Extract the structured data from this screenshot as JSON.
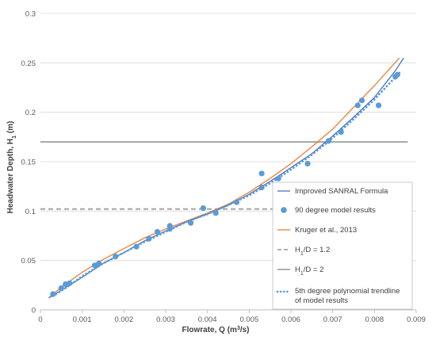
{
  "chart_data": {
    "type": "scatter",
    "xlabel_main": "Flowrate, Q (m",
    "xlabel_sup": "3",
    "xlabel_end": "/s)",
    "ylabel_main": "Headwater Depth, H",
    "ylabel_sub": "1",
    "ylabel_end": " (m)",
    "xlim": [
      0,
      0.009
    ],
    "ylim": [
      0,
      0.3
    ],
    "x_ticks": [
      "0",
      "0.001",
      "0.002",
      "0.003",
      "0.004",
      "0.005",
      "0.006",
      "0.007",
      "0.008",
      "0.009"
    ],
    "y_ticks": [
      "0",
      "0.05",
      "0.1",
      "0.15",
      "0.2",
      "0.25",
      "0.3"
    ],
    "x_tick_values": [
      0,
      0.001,
      0.002,
      0.003,
      0.004,
      0.005,
      0.006,
      0.007,
      0.008,
      0.009
    ],
    "y_tick_values": [
      0,
      0.05,
      0.1,
      0.15,
      0.2,
      0.25,
      0.3
    ],
    "grid": "horizontal",
    "legend_position": "bottom-right inside",
    "series": [
      {
        "name": "Improved SANRAL Formula",
        "kind": "line",
        "color": "#4472C4",
        "x": [
          0.0002,
          0.0005,
          0.001,
          0.0015,
          0.002,
          0.0025,
          0.003,
          0.0035,
          0.004,
          0.0045,
          0.005,
          0.0055,
          0.006,
          0.0065,
          0.007,
          0.0075,
          0.008,
          0.0085,
          0.0087
        ],
        "y": [
          0.012,
          0.02,
          0.033,
          0.047,
          0.058,
          0.07,
          0.08,
          0.089,
          0.097,
          0.106,
          0.117,
          0.13,
          0.144,
          0.158,
          0.176,
          0.195,
          0.215,
          0.242,
          0.255
        ]
      },
      {
        "name": "90 degree model results",
        "kind": "scatter",
        "color": "#5B9BD5",
        "x": [
          0.0003,
          0.0005,
          0.0006,
          0.0007,
          0.0013,
          0.0014,
          0.0018,
          0.0023,
          0.0026,
          0.0028,
          0.0031,
          0.0031,
          0.0036,
          0.0039,
          0.0042,
          0.0047,
          0.0053,
          0.0053,
          0.0057,
          0.0064,
          0.0069,
          0.0072,
          0.0076,
          0.0077,
          0.0081,
          0.0085,
          0.00855
        ],
        "y": [
          0.016,
          0.022,
          0.026,
          0.027,
          0.045,
          0.047,
          0.054,
          0.064,
          0.072,
          0.079,
          0.085,
          0.082,
          0.088,
          0.103,
          0.098,
          0.109,
          0.138,
          0.124,
          0.133,
          0.148,
          0.171,
          0.18,
          0.207,
          0.212,
          0.207,
          0.236,
          0.238
        ]
      },
      {
        "name": "Kruger et al., 2013",
        "kind": "line",
        "color": "#ED7D31",
        "x": [
          0.0002,
          0.0005,
          0.001,
          0.0015,
          0.002,
          0.0025,
          0.003,
          0.0035,
          0.004,
          0.0045,
          0.005,
          0.0055,
          0.006,
          0.0065,
          0.007,
          0.0075,
          0.008,
          0.0086
        ],
        "y": [
          0.012,
          0.023,
          0.038,
          0.051,
          0.062,
          0.073,
          0.082,
          0.09,
          0.098,
          0.107,
          0.119,
          0.133,
          0.148,
          0.165,
          0.183,
          0.205,
          0.227,
          0.255
        ]
      },
      {
        "name_main": "H",
        "name_sub": "1",
        "name_end": "/D = 1.2",
        "kind": "hline-dashed",
        "color": "#A6A6A6",
        "x": [
          0,
          0.0088
        ],
        "y": [
          0.102,
          0.102
        ]
      },
      {
        "name_main": "H",
        "name_sub": "1",
        "name_end": "/D = 2",
        "kind": "hline",
        "color": "#A6A6A6",
        "x": [
          0,
          0.0088
        ],
        "y": [
          0.17,
          0.17
        ]
      },
      {
        "name_line1": "5th degree polynomial trendline",
        "name_line2": "of model results",
        "kind": "dotted",
        "color": "#5B9BD5",
        "x": [
          0.0003,
          0.0006,
          0.001,
          0.0015,
          0.002,
          0.0025,
          0.003,
          0.0035,
          0.004,
          0.0045,
          0.005,
          0.0055,
          0.006,
          0.0065,
          0.007,
          0.0075,
          0.008,
          0.0086
        ],
        "y": [
          0.014,
          0.022,
          0.034,
          0.047,
          0.058,
          0.069,
          0.079,
          0.089,
          0.097,
          0.106,
          0.116,
          0.128,
          0.142,
          0.157,
          0.174,
          0.193,
          0.213,
          0.24
        ]
      }
    ]
  }
}
